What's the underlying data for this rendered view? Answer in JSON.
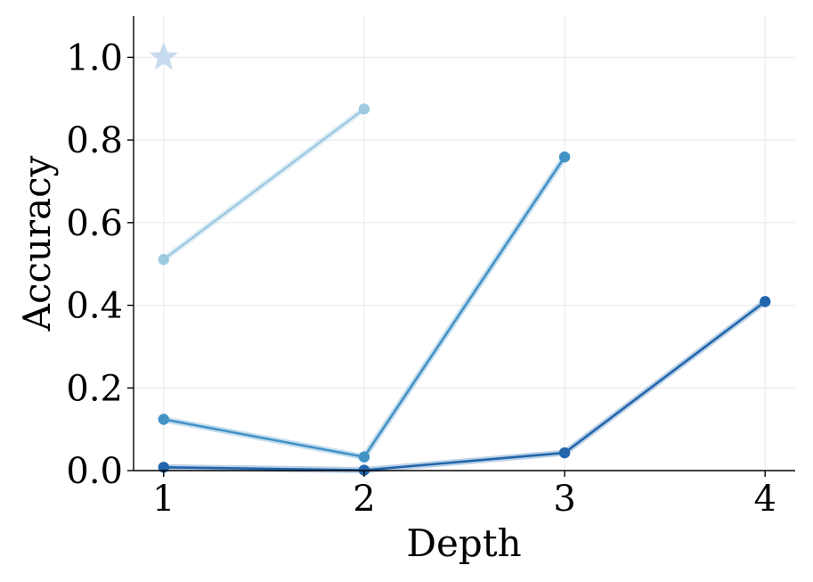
{
  "chart_data": {
    "type": "line",
    "title": "",
    "xlabel": "Depth",
    "ylabel": "Accuracy",
    "x_ticks": [
      "1",
      "2",
      "3",
      "4"
    ],
    "y_ticks": [
      "0.0",
      "0.2",
      "0.4",
      "0.6",
      "0.8",
      "1.0"
    ],
    "xlim": [
      0.85,
      4.15
    ],
    "ylim": [
      0,
      1.1
    ],
    "grid": true,
    "series": [
      {
        "color": "#9ecae1",
        "x": [
          1,
          2
        ],
        "y": [
          0.511,
          0.875
        ]
      },
      {
        "color": "#4292c6",
        "x": [
          1,
          2,
          3
        ],
        "y": [
          0.124,
          0.033,
          0.759
        ]
      },
      {
        "color": "#2166ac",
        "x": [
          1,
          2,
          3,
          4
        ],
        "y": [
          0.008,
          0.001,
          0.043,
          0.409
        ]
      }
    ],
    "markers": [
      {
        "shape": "star",
        "color": "#c6dbef",
        "x": 1,
        "y": 1.0
      }
    ]
  }
}
